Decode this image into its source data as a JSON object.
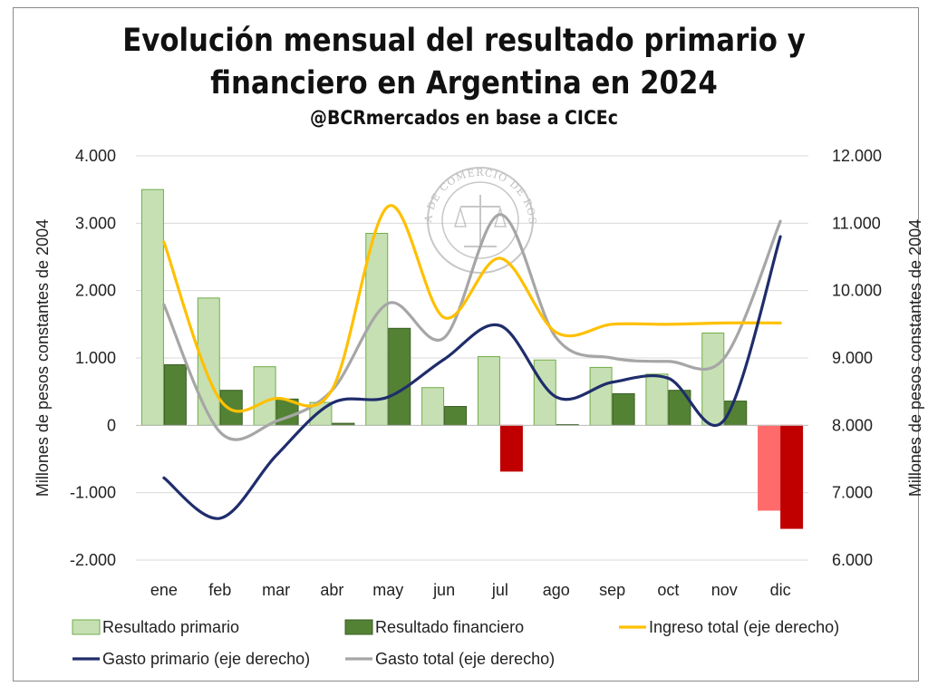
{
  "title_lines": [
    "Evolución mensual del resultado primario y",
    "financiero en Argentina en 2024"
  ],
  "subtitle": "@BCRmercados en base a CICEc",
  "watermark": "BOLSA DE COMERCIO DE ROSARIO",
  "chart_data": {
    "type": "bar",
    "categories": [
      "ene",
      "feb",
      "mar",
      "abr",
      "may",
      "jun",
      "jul",
      "ago",
      "sep",
      "oct",
      "nov",
      "dic"
    ],
    "left_axis": {
      "label": "Millones de pesos constantes de 2004",
      "ylim": [
        -2000,
        4000
      ],
      "ticks": [
        -2000,
        -1000,
        0,
        1000,
        2000,
        3000,
        4000
      ],
      "tick_labels": [
        "-2.000",
        "-1.000",
        "0",
        "1.000",
        "2.000",
        "3.000",
        "4.000"
      ]
    },
    "right_axis": {
      "label": "Millones de pesos constantes de 2004",
      "ylim": [
        6000,
        12000
      ],
      "ticks": [
        6000,
        7000,
        8000,
        9000,
        10000,
        11000,
        12000
      ],
      "tick_labels": [
        "6.000",
        "7.000",
        "8.000",
        "9.000",
        "10.000",
        "11.000",
        "12.000"
      ]
    },
    "grid": true,
    "legend_position": "bottom",
    "bar_series": [
      {
        "name": "Resultado primario",
        "axis": "left",
        "color": "#c6e0b4",
        "negative_color": "#ff6b6b",
        "border": "#70ad47",
        "values": [
          3500,
          1890,
          870,
          340,
          2850,
          560,
          1020,
          970,
          860,
          760,
          1370,
          -1260
        ]
      },
      {
        "name": "Resultado financiero",
        "axis": "left",
        "color": "#548235",
        "negative_color": "#c00000",
        "border": "#3a5f22",
        "values": [
          900,
          520,
          390,
          30,
          1440,
          280,
          -680,
          10,
          470,
          520,
          360,
          -1530
        ]
      }
    ],
    "line_series": [
      {
        "name": "Ingreso total (eje derecho)",
        "axis": "right",
        "color": "#ffc000",
        "values": [
          10720,
          8380,
          8400,
          8530,
          11250,
          9600,
          10480,
          9380,
          9500,
          9500,
          9520,
          9520
        ]
      },
      {
        "name": "Gasto primario (eje derecho)",
        "axis": "right",
        "color": "#1f2d6b",
        "values": [
          7220,
          6620,
          7550,
          8330,
          8420,
          8980,
          9480,
          8420,
          8640,
          8700,
          8080,
          10800
        ]
      },
      {
        "name": "Gasto total (eje derecho)",
        "axis": "right",
        "color": "#a6a6a6",
        "values": [
          9790,
          7900,
          8060,
          8520,
          9810,
          9300,
          11130,
          9300,
          9000,
          8950,
          9000,
          11030
        ]
      }
    ]
  }
}
